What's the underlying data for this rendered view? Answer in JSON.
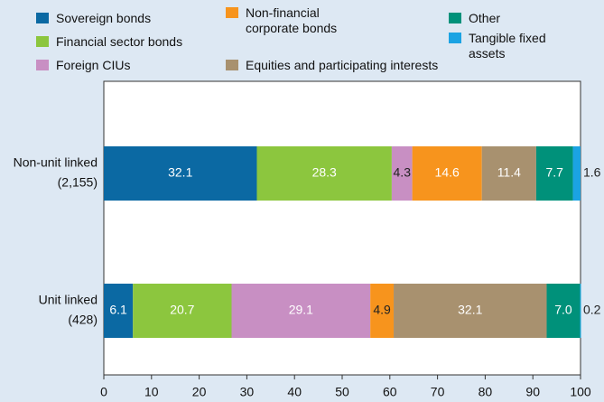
{
  "chart_data": {
    "type": "stacked-barh",
    "categories": [
      [
        "Non-unit linked",
        "(2,155)"
      ],
      [
        "Unit linked",
        "(428)"
      ]
    ],
    "series": [
      {
        "name": "Sovereign bonds",
        "color": "#0b69a3",
        "values": [
          32.1,
          6.1
        ]
      },
      {
        "name": "Financial sector bonds",
        "color": "#8cc63e",
        "values": [
          28.3,
          20.7
        ]
      },
      {
        "name": "Foreign CIUs",
        "color": "#c88fc3",
        "values": [
          4.3,
          29.1
        ]
      },
      {
        "name": "Non-financial corporate bonds",
        "color": "#f7941d",
        "values": [
          14.6,
          4.9
        ]
      },
      {
        "name": "Equities and participating interests",
        "color": "#a8916f",
        "values": [
          11.4,
          32.1
        ]
      },
      {
        "name": "Other",
        "color": "#00917a",
        "values": [
          7.7,
          7
        ],
        "value_labels": [
          "7.7",
          "7.0"
        ]
      },
      {
        "name": "Tangible fixed assets",
        "color": "#1ba3e3",
        "values": [
          1.6,
          0.2
        ]
      }
    ],
    "xlim": [
      0,
      100
    ],
    "xticks": [
      0,
      10,
      20,
      30,
      40,
      50,
      60,
      70,
      80,
      90,
      100
    ]
  }
}
